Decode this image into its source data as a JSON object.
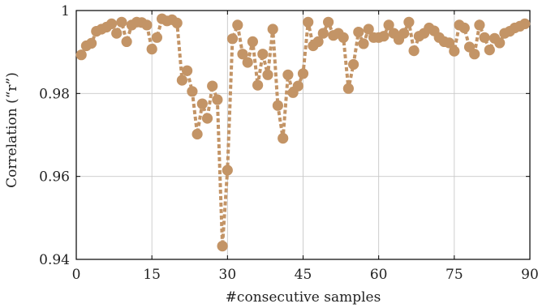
{
  "chart_data": {
    "type": "line",
    "xlabel": "#consecutive samples",
    "ylabel": "Correlation (“r”)",
    "xlim": [
      0,
      90
    ],
    "ylim": [
      0.94,
      1.0
    ],
    "xticks": [
      0,
      15,
      30,
      45,
      60,
      75,
      90
    ],
    "yticks": [
      0.94,
      0.96,
      0.98,
      1.0
    ],
    "xtick_labels": [
      "0",
      "15",
      "30",
      "45",
      "60",
      "75",
      "90"
    ],
    "ytick_labels": [
      "0.94",
      "0.96",
      "0.98",
      "1"
    ],
    "grid": true,
    "series": [
      {
        "color": "#c39466",
        "line_style": "dashed",
        "marker": "circle",
        "x": [
          1,
          2,
          3,
          4,
          5,
          6,
          7,
          8,
          9,
          10,
          11,
          12,
          13,
          14,
          15,
          16,
          17,
          18,
          19,
          20,
          21,
          22,
          23,
          24,
          25,
          26,
          27,
          28,
          29,
          30,
          31,
          32,
          33,
          34,
          35,
          36,
          37,
          38,
          39,
          40,
          41,
          42,
          43,
          44,
          45,
          46,
          47,
          48,
          49,
          50,
          51,
          52,
          53,
          54,
          55,
          56,
          57,
          58,
          59,
          60,
          61,
          62,
          63,
          64,
          65,
          66,
          67,
          68,
          69,
          70,
          71,
          72,
          73,
          74,
          75,
          76,
          77,
          78,
          79,
          80,
          81,
          82,
          83,
          84,
          85,
          86,
          87,
          88,
          89
        ],
        "y": [
          0.9893,
          0.9915,
          0.9921,
          0.995,
          0.9955,
          0.996,
          0.9968,
          0.9945,
          0.9972,
          0.9925,
          0.9965,
          0.9972,
          0.9971,
          0.9965,
          0.9907,
          0.9935,
          0.998,
          0.9975,
          0.9978,
          0.997,
          0.9832,
          0.9855,
          0.9805,
          0.9702,
          0.9775,
          0.974,
          0.9818,
          0.9785,
          0.9432,
          0.9615,
          0.9932,
          0.9965,
          0.9895,
          0.9875,
          0.9925,
          0.982,
          0.9895,
          0.9845,
          0.9955,
          0.9771,
          0.9692,
          0.9845,
          0.9802,
          0.9818,
          0.9848,
          0.9972,
          0.9915,
          0.9925,
          0.9945,
          0.9972,
          0.994,
          0.9945,
          0.9935,
          0.9812,
          0.987,
          0.9948,
          0.992,
          0.9955,
          0.9935,
          0.9935,
          0.9938,
          0.9965,
          0.9945,
          0.993,
          0.9945,
          0.9972,
          0.9903,
          0.9938,
          0.9945,
          0.9958,
          0.9951,
          0.9935,
          0.9925,
          0.9922,
          0.9902,
          0.9965,
          0.9958,
          0.9912,
          0.9895,
          0.9965,
          0.9935,
          0.9905,
          0.9933,
          0.9922,
          0.9945,
          0.995,
          0.9958,
          0.9962,
          0.9968
        ]
      }
    ]
  }
}
